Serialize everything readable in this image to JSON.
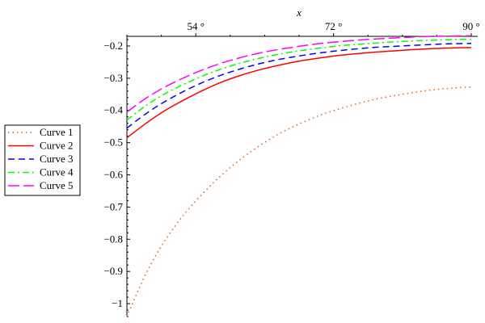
{
  "chart_data": {
    "type": "line",
    "xlabel": "x",
    "ylabel": "",
    "title": "",
    "xlim": [
      45,
      90
    ],
    "ylim": [
      -1.04,
      -0.17
    ],
    "x_ticks": [
      {
        "value": 54,
        "label": "54 °"
      },
      {
        "value": 72,
        "label": "72 °"
      },
      {
        "value": 90,
        "label": "90 °"
      }
    ],
    "y_ticks": [
      {
        "value": -0.2,
        "label": "−0.2"
      },
      {
        "value": -0.3,
        "label": "−0.3"
      },
      {
        "value": -0.4,
        "label": "−0.4"
      },
      {
        "value": -0.5,
        "label": "−0.5"
      },
      {
        "value": -0.6,
        "label": "−0.6"
      },
      {
        "value": -0.7,
        "label": "−0.7"
      },
      {
        "value": -0.8,
        "label": "−0.8"
      },
      {
        "value": -0.9,
        "label": "−0.9"
      },
      {
        "value": -1.0,
        "label": "−1"
      }
    ],
    "grid": false,
    "legend_position": "left",
    "x": [
      45,
      47.5,
      50,
      52.5,
      55,
      57.5,
      60,
      62.5,
      65,
      67.5,
      70,
      72.5,
      75,
      77.5,
      80,
      82.5,
      85,
      87.5,
      90
    ],
    "series": [
      {
        "name": "Curve 1",
        "color": "#d2691e",
        "dash": "dotted",
        "values": [
          -1.04,
          -0.906,
          -0.803,
          -0.722,
          -0.656,
          -0.598,
          -0.549,
          -0.507,
          -0.471,
          -0.442,
          -0.417,
          -0.397,
          -0.38,
          -0.365,
          -0.354,
          -0.344,
          -0.336,
          -0.331,
          -0.327
        ]
      },
      {
        "name": "Curve 2",
        "color": "#ff0000",
        "dash": "solid",
        "values": [
          -0.485,
          -0.44,
          -0.4,
          -0.367,
          -0.337,
          -0.311,
          -0.29,
          -0.273,
          -0.259,
          -0.247,
          -0.238,
          -0.23,
          -0.224,
          -0.219,
          -0.215,
          -0.211,
          -0.208,
          -0.206,
          -0.205
        ]
      },
      {
        "name": "Curve 3",
        "color": "#0000ff",
        "dash": "dash",
        "values": [
          -0.455,
          -0.41,
          -0.372,
          -0.34,
          -0.312,
          -0.289,
          -0.27,
          -0.254,
          -0.241,
          -0.231,
          -0.222,
          -0.215,
          -0.209,
          -0.204,
          -0.201,
          -0.198,
          -0.195,
          -0.193,
          -0.192
        ]
      },
      {
        "name": "Curve 4",
        "color": "#00ff00",
        "dash": "dashdot",
        "values": [
          -0.43,
          -0.385,
          -0.348,
          -0.318,
          -0.292,
          -0.27,
          -0.252,
          -0.237,
          -0.225,
          -0.215,
          -0.207,
          -0.2,
          -0.195,
          -0.191,
          -0.187,
          -0.184,
          -0.182,
          -0.18,
          -0.179
        ]
      },
      {
        "name": "Curve 5",
        "color": "#ff00ff",
        "dash": "longdash",
        "values": [
          -0.405,
          -0.362,
          -0.327,
          -0.298,
          -0.273,
          -0.252,
          -0.235,
          -0.221,
          -0.21,
          -0.201,
          -0.193,
          -0.187,
          -0.182,
          -0.178,
          -0.175,
          -0.172,
          -0.17,
          -0.169,
          -0.168
        ]
      }
    ]
  }
}
